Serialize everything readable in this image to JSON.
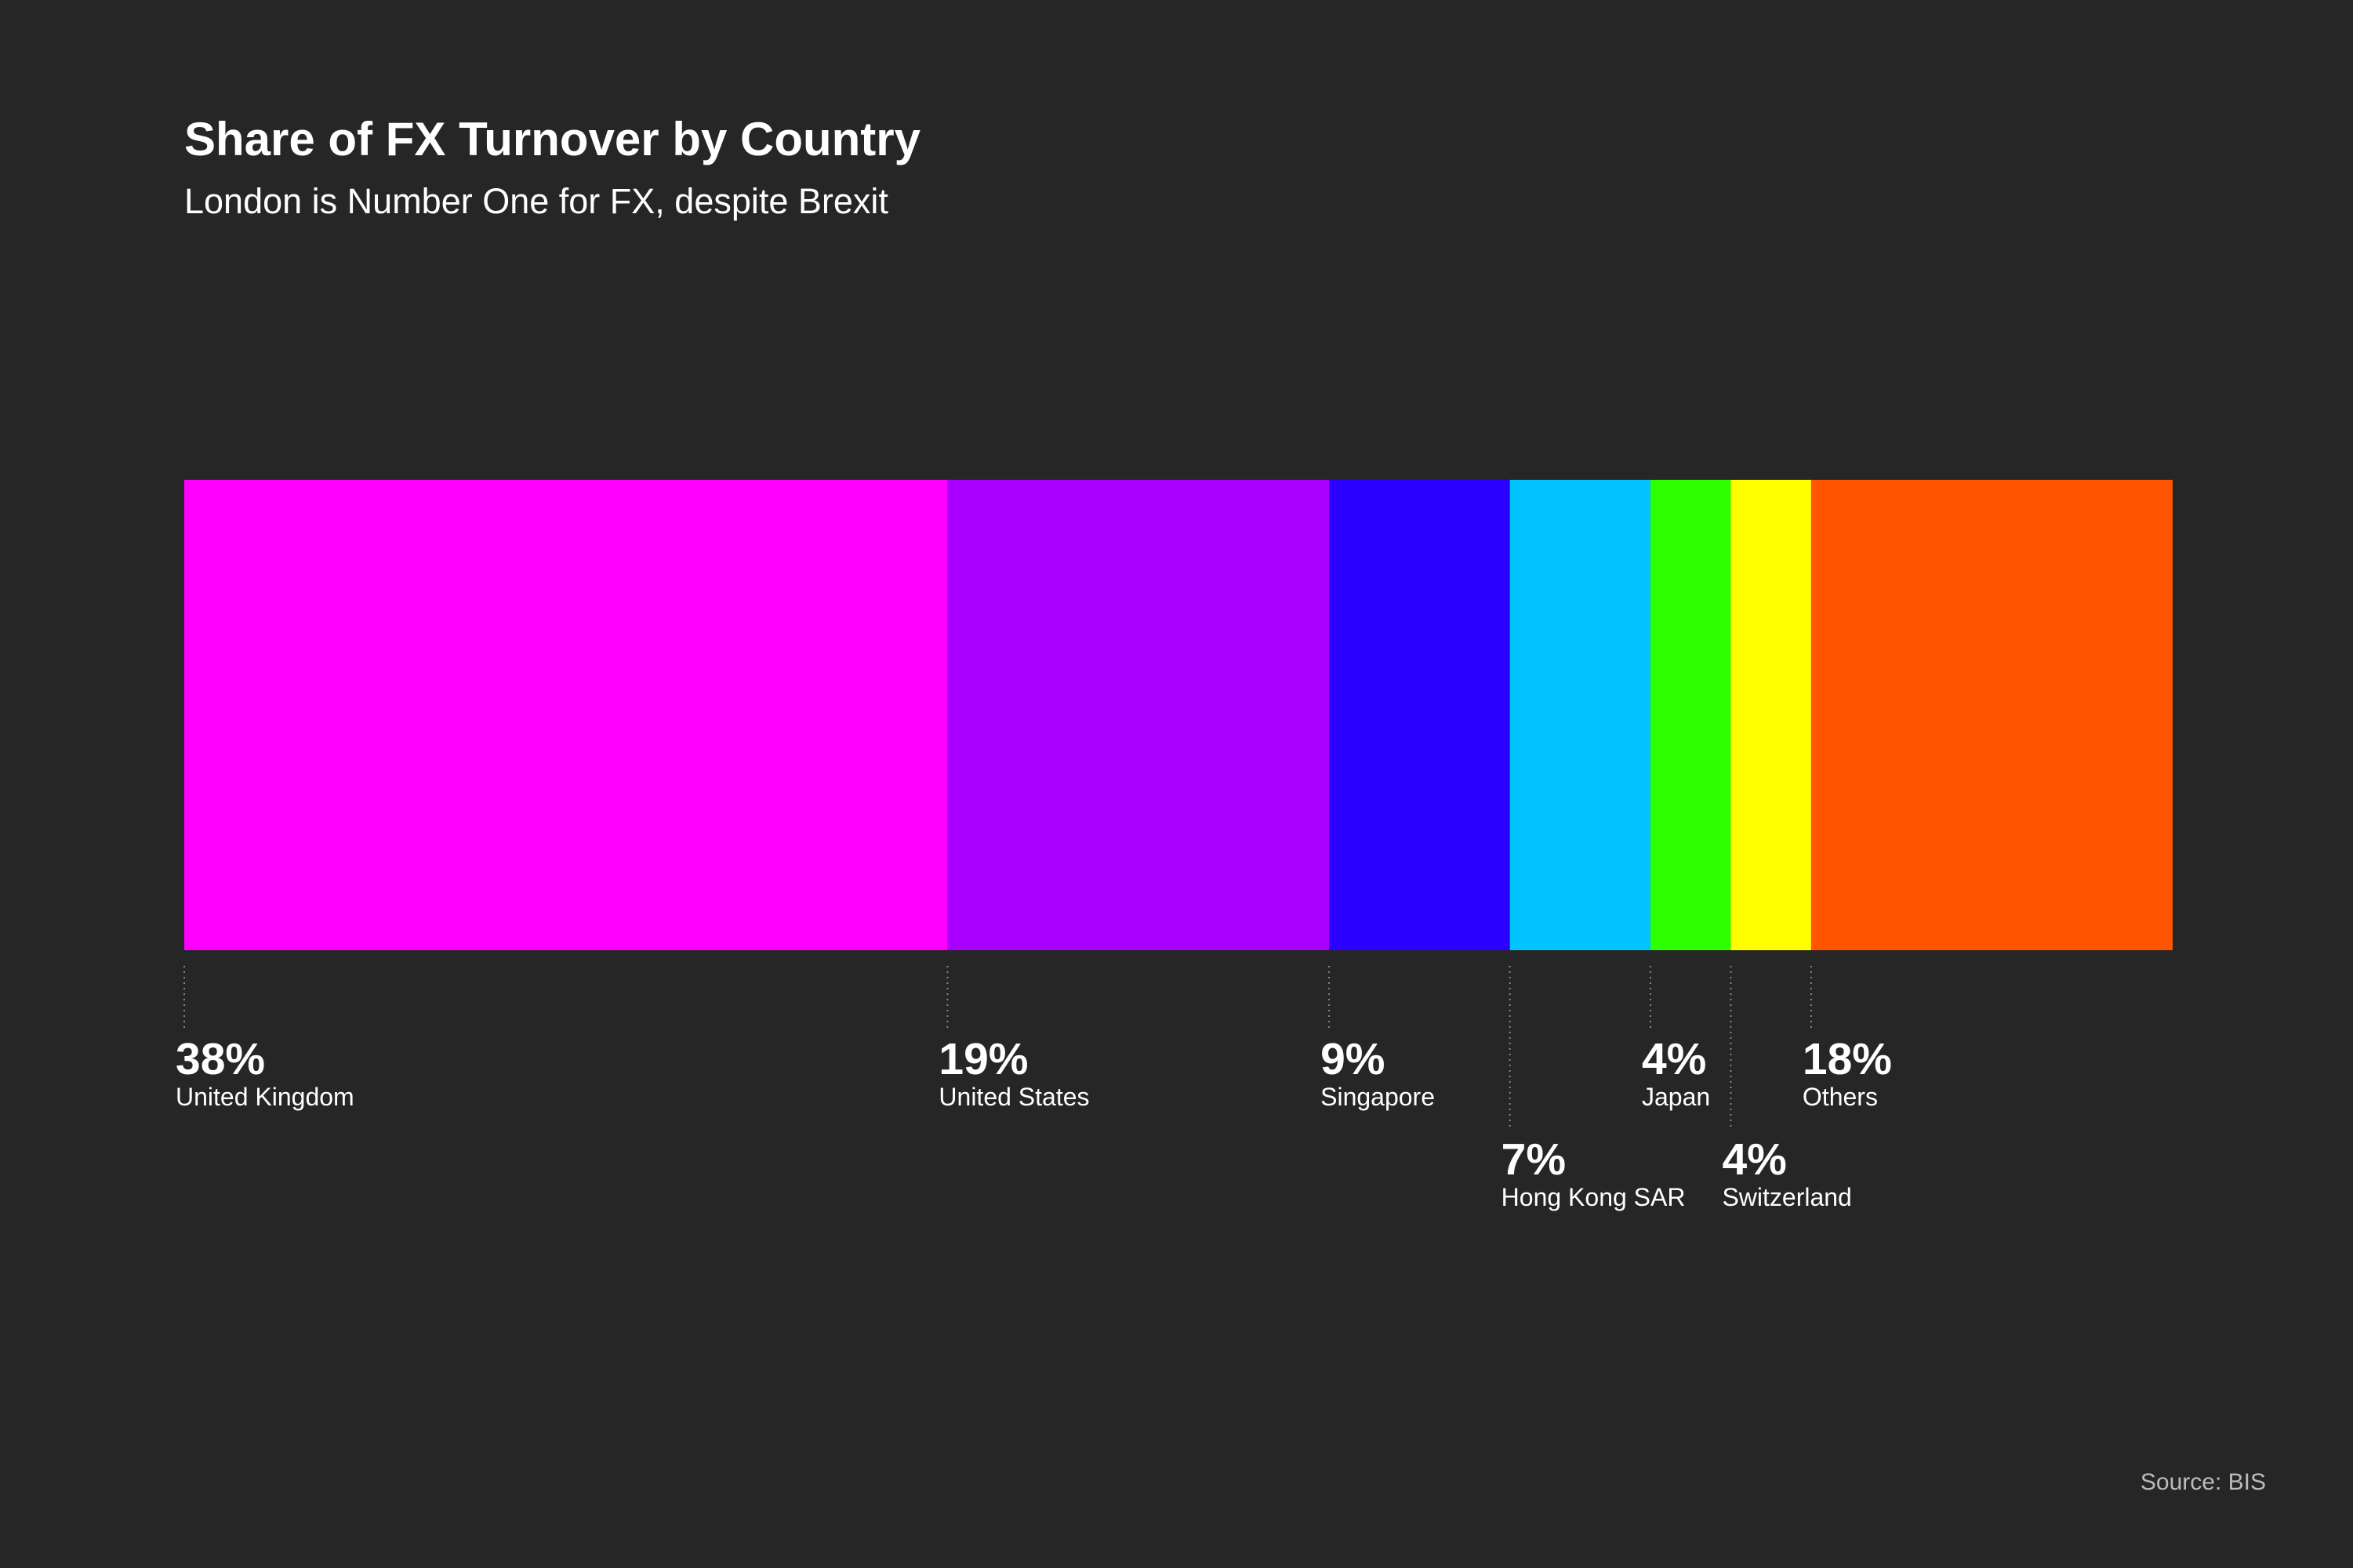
{
  "chart_data": {
    "type": "stacked_bar",
    "title": "Share of FX Turnover by Country",
    "subtitle": "London is Number One for FX, despite Brexit",
    "categories": [
      "United Kingdom",
      "United States",
      "Singapore",
      "Hong Kong SAR",
      "Japan",
      "Switzerland",
      "Others"
    ],
    "values": [
      38,
      19,
      9,
      7,
      4,
      4,
      18
    ],
    "value_labels": [
      "38%",
      "19%",
      "9%",
      "7%",
      "4%",
      "4%",
      "18%"
    ],
    "colors": [
      "#ff00ff",
      "#aa00ff",
      "#2a00ff",
      "#00c3ff",
      "#2eff00",
      "#ffff00",
      "#ff5500"
    ],
    "source": "Source: BIS"
  }
}
